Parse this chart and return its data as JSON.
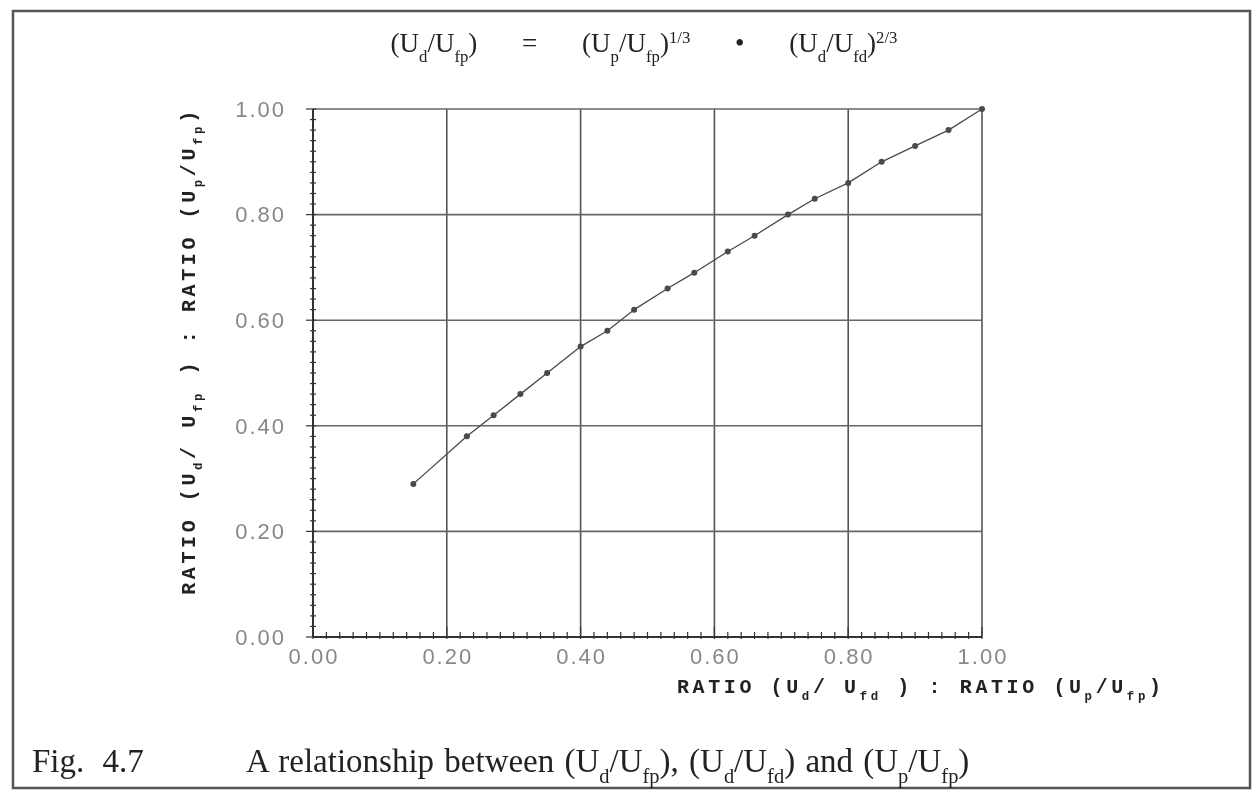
{
  "chart_data": {
    "type": "line",
    "title": "(U$_{d}$/U$_{fp}$) = (U$_{p}$/U$_{fp}$)$^{1/3}$ • (U$_{d}$/U$_{fd}$)$^{2/3}$",
    "xlabel": "RATIO (U$_{d}$/ U$_{fd}$ ) : RATIO (U$_{p}$/U$_{fp}$)",
    "ylabel": "RATIO (U$_{d}$/ U$_{fp}$ ) : RATIO (U$_{p}$/U$_{fp}$)",
    "annotations": [
      "Fig. 4.7",
      "A relationship between (U$_{d}$/U$_{fp}$), (U$_{d}$/U$_{fd}$) and (U$_{p}$/U$_{fp}$)"
    ],
    "x": [
      0.15,
      0.23,
      0.27,
      0.31,
      0.35,
      0.4,
      0.44,
      0.48,
      0.53,
      0.57,
      0.62,
      0.66,
      0.71,
      0.75,
      0.8,
      0.85,
      0.9,
      0.95,
      1.0
    ],
    "series": [
      {
        "color": "#4a4a4a",
        "values": [
          0.29,
          0.38,
          0.42,
          0.46,
          0.5,
          0.55,
          0.58,
          0.62,
          0.66,
          0.69,
          0.73,
          0.76,
          0.8,
          0.83,
          0.86,
          0.9,
          0.93,
          0.96,
          1.0
        ]
      }
    ],
    "xlim": [
      0,
      1
    ],
    "ylim": [
      0,
      1
    ],
    "xticks": [
      {
        "value": 0,
        "label": "0.00"
      },
      {
        "value": 0.02,
        "label": null
      },
      {
        "value": 0.04,
        "label": null
      },
      {
        "value": 0.06,
        "label": null
      },
      {
        "value": 0.08,
        "label": null
      },
      {
        "value": 0.1,
        "label": null
      },
      {
        "value": 0.12,
        "label": null
      },
      {
        "value": 0.14,
        "label": null
      },
      {
        "value": 0.16,
        "label": null
      },
      {
        "value": 0.18,
        "label": null
      },
      {
        "value": 0.2,
        "label": "0.20"
      },
      {
        "value": 0.22,
        "label": null
      },
      {
        "value": 0.24,
        "label": null
      },
      {
        "value": 0.26,
        "label": null
      },
      {
        "value": 0.28,
        "label": null
      },
      {
        "value": 0.3,
        "label": null
      },
      {
        "value": 0.32,
        "label": null
      },
      {
        "value": 0.34,
        "label": null
      },
      {
        "value": 0.36,
        "label": null
      },
      {
        "value": 0.38,
        "label": null
      },
      {
        "value": 0.4,
        "label": "0.40"
      },
      {
        "value": 0.42,
        "label": null
      },
      {
        "value": 0.44,
        "label": null
      },
      {
        "value": 0.46,
        "label": null
      },
      {
        "value": 0.48,
        "label": null
      },
      {
        "value": 0.5,
        "label": null
      },
      {
        "value": 0.52,
        "label": null
      },
      {
        "value": 0.54,
        "label": null
      },
      {
        "value": 0.56,
        "label": null
      },
      {
        "value": 0.58,
        "label": null
      },
      {
        "value": 0.6,
        "label": "0.60"
      },
      {
        "value": 0.62,
        "label": null
      },
      {
        "value": 0.64,
        "label": null
      },
      {
        "value": 0.66,
        "label": null
      },
      {
        "value": 0.68,
        "label": null
      },
      {
        "value": 0.7,
        "label": null
      },
      {
        "value": 0.72,
        "label": null
      },
      {
        "value": 0.74,
        "label": null
      },
      {
        "value": 0.76,
        "label": null
      },
      {
        "value": 0.78,
        "label": null
      },
      {
        "value": 0.8,
        "label": "0.80"
      },
      {
        "value": 0.82,
        "label": null
      },
      {
        "value": 0.84,
        "label": null
      },
      {
        "value": 0.86,
        "label": null
      },
      {
        "value": 0.88,
        "label": null
      },
      {
        "value": 0.9,
        "label": null
      },
      {
        "value": 0.92,
        "label": null
      },
      {
        "value": 0.94,
        "label": null
      },
      {
        "value": 0.96,
        "label": null
      },
      {
        "value": 0.98,
        "label": null
      },
      {
        "value": 1,
        "label": "1.00"
      }
    ],
    "yticks": [
      {
        "value": 0,
        "label": "0.00"
      },
      {
        "value": 0.02,
        "label": null
      },
      {
        "value": 0.04,
        "label": null
      },
      {
        "value": 0.06,
        "label": null
      },
      {
        "value": 0.08,
        "label": null
      },
      {
        "value": 0.1,
        "label": null
      },
      {
        "value": 0.12,
        "label": null
      },
      {
        "value": 0.14,
        "label": null
      },
      {
        "value": 0.16,
        "label": null
      },
      {
        "value": 0.18,
        "label": null
      },
      {
        "value": 0.2,
        "label": "0.20"
      },
      {
        "value": 0.22,
        "label": null
      },
      {
        "value": 0.24,
        "label": null
      },
      {
        "value": 0.26,
        "label": null
      },
      {
        "value": 0.28,
        "label": null
      },
      {
        "value": 0.3,
        "label": null
      },
      {
        "value": 0.32,
        "label": null
      },
      {
        "value": 0.34,
        "label": null
      },
      {
        "value": 0.36,
        "label": null
      },
      {
        "value": 0.38,
        "label": null
      },
      {
        "value": 0.4,
        "label": "0.40"
      },
      {
        "value": 0.42,
        "label": null
      },
      {
        "value": 0.44,
        "label": null
      },
      {
        "value": 0.46,
        "label": null
      },
      {
        "value": 0.48,
        "label": null
      },
      {
        "value": 0.5,
        "label": null
      },
      {
        "value": 0.52,
        "label": null
      },
      {
        "value": 0.54,
        "label": null
      },
      {
        "value": 0.56,
        "label": null
      },
      {
        "value": 0.58,
        "label": null
      },
      {
        "value": 0.6,
        "label": "0.60"
      },
      {
        "value": 0.62,
        "label": null
      },
      {
        "value": 0.64,
        "label": null
      },
      {
        "value": 0.66,
        "label": null
      },
      {
        "value": 0.68,
        "label": null
      },
      {
        "value": 0.7,
        "label": null
      },
      {
        "value": 0.72,
        "label": null
      },
      {
        "value": 0.74,
        "label": null
      },
      {
        "value": 0.76,
        "label": null
      },
      {
        "value": 0.78,
        "label": null
      },
      {
        "value": 0.8,
        "label": "0.80"
      },
      {
        "value": 0.82,
        "label": null
      },
      {
        "value": 0.84,
        "label": null
      },
      {
        "value": 0.86,
        "label": null
      },
      {
        "value": 0.88,
        "label": null
      },
      {
        "value": 0.9,
        "label": null
      },
      {
        "value": 0.92,
        "label": null
      },
      {
        "value": 0.94,
        "label": null
      },
      {
        "value": 0.96,
        "label": null
      },
      {
        "value": 0.98,
        "label": null
      },
      {
        "value": 1,
        "label": "1.00"
      }
    ],
    "grid": true,
    "marker": "circle",
    "line_style": "solid"
  }
}
